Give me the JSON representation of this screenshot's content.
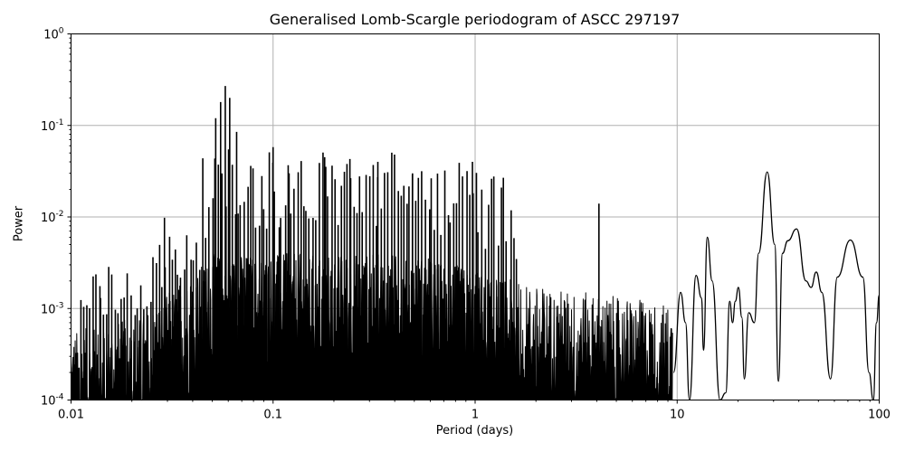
{
  "chart_data": {
    "type": "line",
    "title": "Generalised Lomb-Scargle periodogram of ASCC 297197",
    "xlabel": "Period (days)",
    "ylabel": "Power",
    "xscale": "log",
    "yscale": "log",
    "xlim": [
      0.01,
      100
    ],
    "ylim": [
      0.0001,
      1
    ],
    "grid": true,
    "legend": null,
    "x_ticks": [
      "0.01",
      "0.1",
      "1",
      "10",
      "100"
    ],
    "y_ticks": [
      "10^0",
      "10^-1",
      "10^-2",
      "10^-3",
      "10^-4"
    ],
    "line_color": "#000000",
    "grid_color": "#b0b0b0",
    "notable_peaks": [
      {
        "period": 0.058,
        "power": 0.27
      },
      {
        "period": 0.061,
        "power": 0.2
      },
      {
        "period": 0.055,
        "power": 0.18
      },
      {
        "period": 0.066,
        "power": 0.085
      },
      {
        "period": 0.052,
        "power": 0.12
      },
      {
        "period": 0.1,
        "power": 0.058
      },
      {
        "period": 0.088,
        "power": 0.028
      },
      {
        "period": 0.12,
        "power": 0.03
      },
      {
        "period": 0.18,
        "power": 0.045
      },
      {
        "period": 0.33,
        "power": 0.04
      },
      {
        "period": 0.24,
        "power": 0.043
      },
      {
        "period": 0.49,
        "power": 0.03
      },
      {
        "period": 0.97,
        "power": 0.04
      },
      {
        "period": 0.029,
        "power": 0.0098
      },
      {
        "period": 0.014,
        "power": 0.0013
      },
      {
        "period": 4.1,
        "power": 0.014
      },
      {
        "period": 14.1,
        "power": 0.006
      },
      {
        "period": 27.9,
        "power": 0.031
      },
      {
        "period": 39.0,
        "power": 0.0074
      },
      {
        "period": 49.0,
        "power": 0.0025
      },
      {
        "period": 72.0,
        "power": 0.0056
      }
    ],
    "long_period_curve": [
      {
        "period": 9.6,
        "power": 0.0002
      },
      {
        "period": 10.4,
        "power": 0.0015
      },
      {
        "period": 11.0,
        "power": 0.0007
      },
      {
        "period": 11.5,
        "power": 0.0001
      },
      {
        "period": 12.4,
        "power": 0.0023
      },
      {
        "period": 13.2,
        "power": 0.0013
      },
      {
        "period": 13.5,
        "power": 0.00035
      },
      {
        "period": 14.1,
        "power": 0.006
      },
      {
        "period": 14.9,
        "power": 0.002
      },
      {
        "period": 16.3,
        "power": 0.0001
      },
      {
        "period": 17.4,
        "power": 0.00012
      },
      {
        "period": 18.2,
        "power": 0.0012
      },
      {
        "period": 18.8,
        "power": 0.0007
      },
      {
        "period": 19.4,
        "power": 0.0012
      },
      {
        "period": 20.1,
        "power": 0.0017
      },
      {
        "period": 20.9,
        "power": 0.0008
      },
      {
        "period": 21.5,
        "power": 0.00017
      },
      {
        "period": 22.6,
        "power": 0.0009
      },
      {
        "period": 24.1,
        "power": 0.0007
      },
      {
        "period": 25.3,
        "power": 0.004
      },
      {
        "period": 27.9,
        "power": 0.031
      },
      {
        "period": 30.4,
        "power": 0.005
      },
      {
        "period": 31.7,
        "power": 0.00016
      },
      {
        "period": 33.2,
        "power": 0.004
      },
      {
        "period": 35.3,
        "power": 0.0055
      },
      {
        "period": 39.0,
        "power": 0.0074
      },
      {
        "period": 43.4,
        "power": 0.002
      },
      {
        "period": 46.0,
        "power": 0.0017
      },
      {
        "period": 48.8,
        "power": 0.0025
      },
      {
        "period": 52.0,
        "power": 0.0015
      },
      {
        "period": 57.4,
        "power": 0.00017
      },
      {
        "period": 62.0,
        "power": 0.0022
      },
      {
        "period": 72.0,
        "power": 0.0056
      },
      {
        "period": 83.0,
        "power": 0.0022
      },
      {
        "period": 89.0,
        "power": 0.0002
      },
      {
        "period": 93.5,
        "power": 0.0001
      },
      {
        "period": 97.0,
        "power": 0.0007
      },
      {
        "period": 100.0,
        "power": 0.0014
      }
    ]
  }
}
